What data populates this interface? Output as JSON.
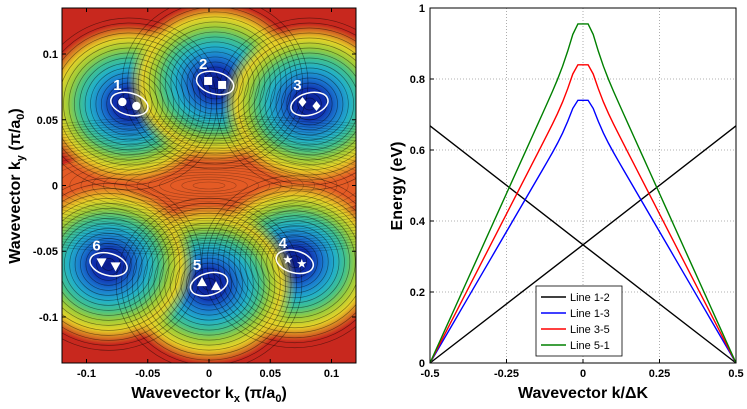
{
  "chart_data": [
    {
      "type": "heatmap",
      "title": "",
      "xlabel": "Wavevector k",
      "xlabel_sub": "x",
      "xlabel_unit": " (π/a",
      "xlabel_unit_sub": "0",
      "xlabel_unit_end": ")",
      "ylabel": "Wavevector k",
      "ylabel_sub": "y",
      "ylabel_unit": " (π/a",
      "ylabel_unit_sub": "0",
      "ylabel_unit_end": ")",
      "xlim": [
        -0.12,
        0.12
      ],
      "ylim": [
        -0.135,
        0.135
      ],
      "xticks": [
        -0.1,
        -0.05,
        0,
        0.05,
        0.1
      ],
      "xtick_labels": [
        "-0.1",
        "-0.05",
        "0",
        "0.05",
        "0.1"
      ],
      "yticks": [
        0.1,
        0.05,
        0,
        -0.05,
        -0.1
      ],
      "ytick_labels": [
        "0.1",
        "0.05",
        "0",
        "-0.05",
        "-0.1"
      ],
      "valleys": [
        {
          "label": "1",
          "x": -0.065,
          "y": 0.062,
          "marker": "circle"
        },
        {
          "label": "2",
          "x": 0.005,
          "y": 0.078,
          "marker": "square"
        },
        {
          "label": "3",
          "x": 0.082,
          "y": 0.062,
          "marker": "diamond"
        },
        {
          "label": "4",
          "x": 0.07,
          "y": -0.058,
          "marker": "star"
        },
        {
          "label": "5",
          "x": 0.0,
          "y": -0.075,
          "marker": "triangle-up"
        },
        {
          "label": "6",
          "x": -0.082,
          "y": -0.06,
          "marker": "triangle-down"
        }
      ]
    },
    {
      "type": "line",
      "title": "",
      "xlabel": "Wavevector k/ΔK",
      "ylabel": "Energy (eV)",
      "xlim": [
        -0.5,
        0.5
      ],
      "ylim": [
        0,
        1
      ],
      "xticks": [
        -0.5,
        -0.25,
        0,
        0.25,
        0.5
      ],
      "xtick_labels": [
        "-0.5",
        "-0.25",
        "0",
        "0.25",
        "0.5"
      ],
      "yticks": [
        0,
        0.2,
        0.4,
        0.6,
        0.8,
        1
      ],
      "ytick_labels": [
        "0",
        "0.2",
        "0.4",
        "0.6",
        "0.8",
        "1"
      ],
      "grid": true,
      "legend_position": "bottom-center",
      "series": [
        {
          "name": "Line 1-2",
          "color": "#000000",
          "x": [
            -0.5,
            0,
            0.5
          ],
          "y": [
            0.668,
            0.333,
            0
          ],
          "second_x": [
            -0.5,
            0,
            0.5
          ],
          "second_y": [
            0,
            0.333,
            0.668
          ]
        },
        {
          "name": "Line 1-3",
          "color": "#0000ff",
          "peak": 0.74
        },
        {
          "name": "Line 3-5",
          "color": "#ff0000",
          "peak": 0.84
        },
        {
          "name": "Line 5-1",
          "color": "#008000",
          "peak": 0.955
        }
      ]
    }
  ]
}
